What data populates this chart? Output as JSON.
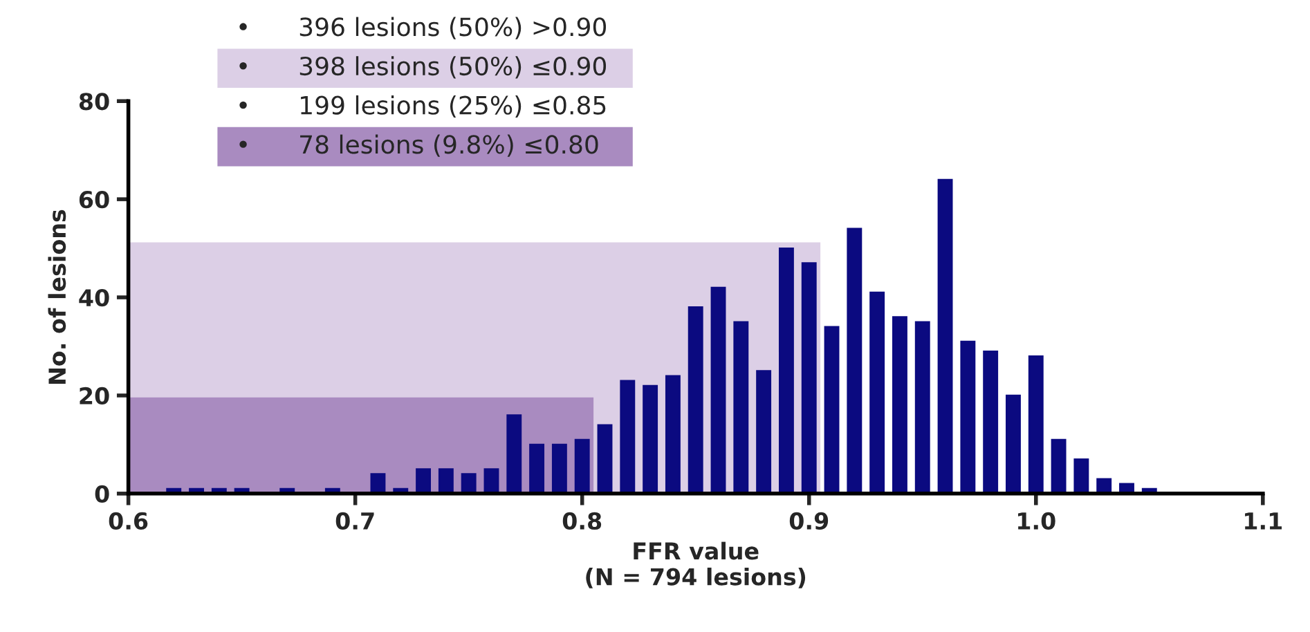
{
  "chart_data": {
    "type": "bar",
    "xlabel": "FFR value\n(N = 794 lesions)",
    "ylabel": "No. of lesions",
    "x": [
      0.62,
      0.63,
      0.64,
      0.65,
      0.66,
      0.67,
      0.68,
      0.69,
      0.7,
      0.71,
      0.72,
      0.73,
      0.74,
      0.75,
      0.76,
      0.77,
      0.78,
      0.79,
      0.8,
      0.81,
      0.82,
      0.83,
      0.84,
      0.85,
      0.86,
      0.87,
      0.88,
      0.89,
      0.9,
      0.91,
      0.92,
      0.93,
      0.94,
      0.95,
      0.96,
      0.97,
      0.98,
      0.99,
      1.0,
      1.01,
      1.02,
      1.03,
      1.04,
      1.05
    ],
    "series": [
      {
        "color": "#0b0a80",
        "values": [
          1,
          1,
          1,
          1,
          0,
          1,
          0,
          1,
          0,
          4,
          1,
          5,
          5,
          4,
          5,
          16,
          10,
          10,
          11,
          14,
          23,
          22,
          24,
          38,
          42,
          35,
          25,
          50,
          47,
          34,
          54,
          41,
          36,
          35,
          64,
          31,
          29,
          20,
          28,
          11,
          7,
          3,
          2,
          1
        ]
      }
    ],
    "xlim": [
      0.6,
      1.1
    ],
    "xticks": [
      0.6,
      0.7,
      0.8,
      0.9,
      {
        "value": 1.0,
        "label": "1.0"
      },
      1.1
    ],
    "ylim": [
      0,
      80
    ],
    "yticks": [
      0,
      20,
      40,
      60,
      80
    ],
    "grid": false,
    "bands": [
      {
        "axis": "x",
        "from": 0.6,
        "to": 0.905,
        "color": "#dccfe6"
      },
      {
        "axis": "x",
        "from": 0.6,
        "to": 0.805,
        "color": "#a98bc0"
      }
    ],
    "annotations": [
      "•      396 lesions (50%) >0.90",
      "•      398 lesions (50%) ≤0.90",
      "•      199 lesions (25%) ≤0.85",
      "•      78 lesions (9.8%) ≤0.80"
    ]
  }
}
